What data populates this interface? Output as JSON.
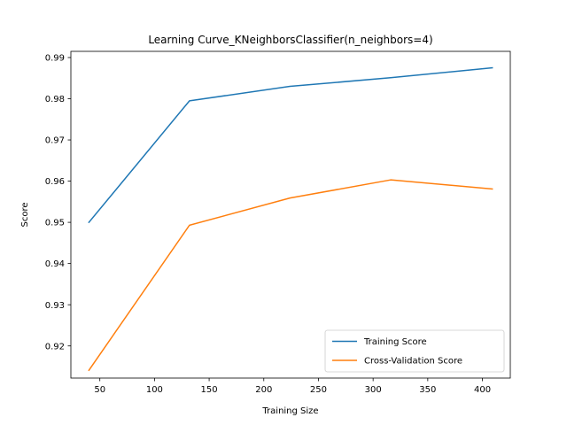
{
  "chart_data": {
    "type": "line",
    "title": "Learning Curve_KNeighborsClassifier(n_neighbors=4)",
    "xlabel": "Training Size",
    "ylabel": "Score",
    "xlim": [
      23.5,
      425.5
    ],
    "ylim": [
      0.9122,
      0.9915
    ],
    "xticks": [
      50,
      100,
      150,
      200,
      250,
      300,
      350,
      400
    ],
    "yticks": [
      0.92,
      0.93,
      0.94,
      0.95,
      0.96,
      0.97,
      0.98,
      0.99
    ],
    "grid": false,
    "legend_position": "lower-right",
    "x": [
      40,
      132,
      224,
      316,
      409
    ],
    "series": [
      {
        "name": "Training Score",
        "color": "#1f77b4",
        "values": [
          0.95,
          0.9795,
          0.983,
          0.9851,
          0.9875
        ]
      },
      {
        "name": "Cross-Validation Score",
        "color": "#ff7f0e",
        "values": [
          0.9141,
          0.9493,
          0.9559,
          0.9603,
          0.9581
        ]
      }
    ]
  }
}
